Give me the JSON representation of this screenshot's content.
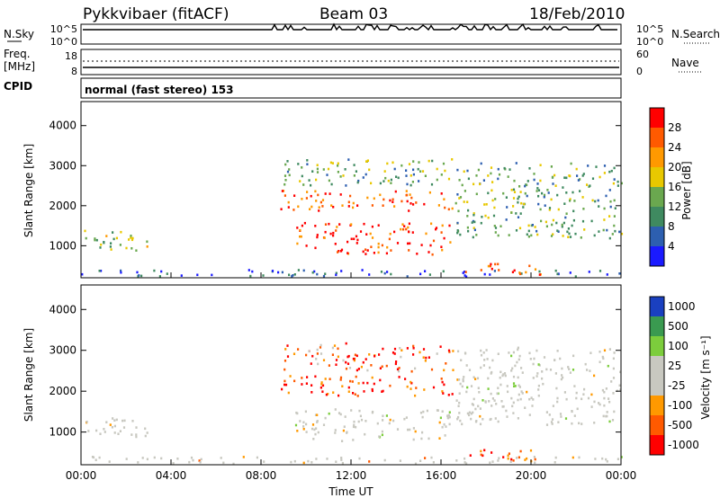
{
  "header": {
    "title_left": "Pykkvibaer (fitACF)",
    "title_center": "Beam 03",
    "title_right": "18/Feb/2010"
  },
  "panels": {
    "nsky": {
      "label": "N.Sky",
      "ytick_top": "10^5",
      "ytick_bottom": "10^0",
      "right_tick_top": "10^5",
      "right_tick_bottom": "10^0",
      "right_label": "N.Search"
    },
    "freq": {
      "label": "Freq.",
      "unit": "[MHz]",
      "ytick_top": "18",
      "ytick_bottom": "8",
      "right_tick_top": "60",
      "right_tick_bottom": "0",
      "right_label": "Nave"
    },
    "cpid": {
      "label": "CPID",
      "text": "normal (fast stereo) 153"
    }
  },
  "colors": {
    "power_scale": [
      "#1a1aff",
      "#2d5fb0",
      "#3f8a60",
      "#6aa84f",
      "#e8c800",
      "#ff9900",
      "#ff5a00",
      "#ff0000"
    ],
    "velocity_scale": [
      "#ff0000",
      "#ff5a00",
      "#ff9900",
      "#c8c8c0",
      "#c8c8c0",
      "#7ccd3c",
      "#3a9a50",
      "#1a40c0"
    ],
    "ground_scatter": "#c8c8c0"
  },
  "chart_data": [
    {
      "type": "heatmap",
      "title": "",
      "quantity": "Power",
      "ylabel": "Slant Range [km]",
      "yticks": [
        "1000",
        "2000",
        "3000",
        "4000"
      ],
      "ylim": [
        200,
        4600
      ],
      "xlim_hours": [
        0,
        24
      ],
      "colorbar_label": "Power [dB]",
      "colorbar_ticks": [
        "4",
        "8",
        "12",
        "16",
        "20",
        "24",
        "28"
      ],
      "clim": [
        0,
        32
      ],
      "echo_regions": [
        {
          "t_start": 0.0,
          "t_end": 3.0,
          "r_start": 900,
          "r_end": 1450,
          "level": 0.45
        },
        {
          "t_start": 0.0,
          "t_end": 24.0,
          "r_start": 250,
          "r_end": 420,
          "level": 0.15
        },
        {
          "t_start": 8.8,
          "t_end": 16.6,
          "r_start": 1900,
          "r_end": 2400,
          "level": 0.85
        },
        {
          "t_start": 9.5,
          "t_end": 16.5,
          "r_start": 800,
          "r_end": 1600,
          "level": 0.9
        },
        {
          "t_start": 9.0,
          "t_end": 16.5,
          "r_start": 2500,
          "r_end": 3200,
          "level": 0.4
        },
        {
          "t_start": 16.6,
          "t_end": 24.0,
          "r_start": 1200,
          "r_end": 3100,
          "level": 0.4
        },
        {
          "t_start": 17.0,
          "t_end": 20.5,
          "r_start": 300,
          "r_end": 600,
          "level": 0.85
        }
      ]
    },
    {
      "type": "heatmap",
      "title": "",
      "quantity": "Velocity",
      "ylabel": "Slant Range [km]",
      "yticks": [
        "1000",
        "2000",
        "3000",
        "4000"
      ],
      "ylim": [
        200,
        4600
      ],
      "xlabel": "Time UT",
      "xticks": [
        "00:00",
        "04:00",
        "08:00",
        "12:00",
        "16:00",
        "20:00",
        "00:00"
      ],
      "xlim_hours": [
        0,
        24
      ],
      "colorbar_label": "Velocity [m s⁻¹]",
      "colorbar_ticks": [
        "1000",
        "500",
        "100",
        "25",
        "-25",
        "-100",
        "-500",
        "-1000"
      ],
      "clim": [
        -1000,
        1000
      ],
      "echo_regions": [
        {
          "t_start": 0.0,
          "t_end": 3.0,
          "r_start": 900,
          "r_end": 1450,
          "level": 0.5
        },
        {
          "t_start": 0.0,
          "t_end": 24.0,
          "r_start": 250,
          "r_end": 420,
          "level": 0.45
        },
        {
          "t_start": 8.8,
          "t_end": 16.6,
          "r_start": 1900,
          "r_end": 2400,
          "level": 0.15
        },
        {
          "t_start": 9.5,
          "t_end": 16.5,
          "r_start": 800,
          "r_end": 1600,
          "level": 0.5
        },
        {
          "t_start": 9.0,
          "t_end": 16.5,
          "r_start": 2500,
          "r_end": 3200,
          "level": 0.2
        },
        {
          "t_start": 16.6,
          "t_end": 24.0,
          "r_start": 1200,
          "r_end": 3100,
          "level": 0.5
        },
        {
          "t_start": 17.0,
          "t_end": 20.5,
          "r_start": 300,
          "r_end": 600,
          "level": 0.15
        }
      ]
    }
  ]
}
